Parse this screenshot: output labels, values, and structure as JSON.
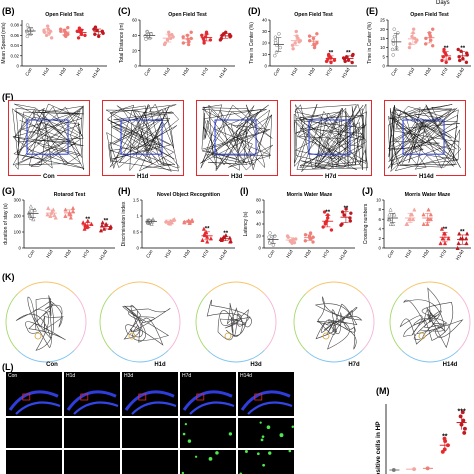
{
  "top_partial_text": "Days",
  "panel_letters": [
    "(B)",
    "(C)",
    "(D)",
    "(E)",
    "(F)",
    "(G)",
    "(H)",
    "(I)",
    "(J)",
    "(K)",
    "(L)",
    "(M)"
  ],
  "group_names": [
    "Con",
    "H1d",
    "H3d",
    "H7d",
    "H14d"
  ],
  "colors": {
    "control": "#777777",
    "light": "#f4a7a2",
    "mid": "#ef7f78",
    "dark": "#e4292f",
    "darkest": "#c0181f",
    "trace_blue": "#2a3ed9"
  },
  "chart_data": [
    {
      "id": "B",
      "type": "scatter",
      "title": "Open Field Test",
      "ylabel": "Mean Speed (m/s)",
      "categories": [
        "Con",
        "H1d",
        "H3d",
        "H7d",
        "H14d"
      ],
      "ylim": [
        0,
        0.09
      ],
      "ticks": [
        0,
        0.02,
        0.04,
        0.06,
        0.08
      ],
      "series": [
        {
          "values": [
            [
              0.065,
              0.07,
              0.062,
              0.075,
              0.08,
              0.058,
              0.07,
              0.068
            ],
            [
              0.06,
              0.072,
              0.066,
              0.055,
              0.078,
              0.07,
              0.064,
              0.068
            ],
            [
              0.058,
              0.07,
              0.075,
              0.066,
              0.062,
              0.072,
              0.068,
              0.06
            ],
            [
              0.06,
              0.066,
              0.07,
              0.074,
              0.055,
              0.068,
              0.062,
              0.07
            ],
            [
              0.062,
              0.07,
              0.076,
              0.066,
              0.058,
              0.072,
              0.068,
              0.064
            ]
          ]
        }
      ],
      "annotations": []
    },
    {
      "id": "C",
      "type": "scatter",
      "title": "Open Field Test",
      "ylabel": "Total Distance (m)",
      "categories": [
        "Con",
        "H1d",
        "H3d",
        "H7d",
        "H14d"
      ],
      "ylim": [
        0,
        60
      ],
      "ticks": [
        0,
        20,
        40,
        60
      ],
      "series": [
        {
          "values": [
            [
              38,
              42,
              36,
              45,
              40,
              35,
              44,
              39
            ],
            [
              34,
              40,
              30,
              38,
              44,
              28,
              36,
              41
            ],
            [
              32,
              40,
              36,
              28,
              44,
              38,
              30,
              35
            ],
            [
              34,
              38,
              42,
              30,
              36,
              40,
              44,
              33
            ],
            [
              36,
              42,
              40,
              38,
              44,
              34,
              41,
              39
            ]
          ]
        }
      ],
      "annotations": []
    },
    {
      "id": "D",
      "type": "scatter",
      "title": "Open Field Test",
      "ylabel": "Time in Center (%)",
      "categories": [
        "Con",
        "H1d",
        "H3d",
        "H7d",
        "H14d"
      ],
      "ylim": [
        0,
        40
      ],
      "ticks": [
        0,
        10,
        20,
        30,
        40
      ],
      "series": [
        {
          "values": [
            [
              22,
              16,
              28,
              12,
              20,
              25,
              18,
              9
            ],
            [
              20,
              26,
              15,
              22,
              30,
              18,
              24,
              21
            ],
            [
              18,
              24,
              28,
              16,
              20,
              26,
              22,
              19
            ],
            [
              5,
              8,
              3,
              10,
              6,
              4,
              7,
              9
            ],
            [
              6,
              8,
              4,
              9,
              5,
              7,
              3,
              10
            ]
          ]
        }
      ],
      "annotations": [
        "",
        "",
        "",
        "**",
        "**"
      ]
    },
    {
      "id": "E",
      "type": "scatter",
      "title": "Open Field Test",
      "ylabel": "Time in Center (%)",
      "categories": [
        "Con",
        "H1d",
        "H3d",
        "H7d",
        "H14d"
      ],
      "ylim": [
        0,
        25
      ],
      "ticks": [
        0,
        5,
        10,
        15,
        20,
        25
      ],
      "series": [
        {
          "values": [
            [
              14,
              18,
              10,
              20,
              12,
              6,
              16,
              9
            ],
            [
              16,
              20,
              12,
              14,
              18,
              10,
              15,
              13
            ],
            [
              14,
              18,
              11,
              16,
              20,
              12,
              15,
              17
            ],
            [
              4,
              7,
              2,
              9,
              5,
              3,
              6,
              8
            ],
            [
              5,
              8,
              3,
              7,
              4,
              9,
              2,
              6
            ]
          ]
        }
      ],
      "annotations": [
        "",
        "",
        "",
        "**",
        "**"
      ]
    },
    {
      "id": "G",
      "type": "scatter",
      "title": "Rotarod Test",
      "ylabel": "duration of stay (s)",
      "categories": [
        "Con",
        "H1d",
        "H3d",
        "H7d",
        "H14d"
      ],
      "ylim": [
        0,
        300
      ],
      "ticks": [
        0,
        100,
        200,
        300
      ],
      "series": [
        {
          "values": [
            [
              210,
              240,
              180,
              260,
              200,
              230,
              190,
              220
            ],
            [
              200,
              230,
              250,
              190,
              220,
              210,
              240,
              205
            ],
            [
              190,
              220,
              250,
              210,
              230,
              200,
              240,
              215
            ],
            [
              150,
              130,
              170,
              140,
              120,
              160,
              135,
              145
            ],
            [
              140,
              120,
              160,
              130,
              150,
              110,
              125,
              135
            ]
          ]
        }
      ],
      "annotations": [
        "",
        "",
        "",
        "**",
        "**"
      ]
    },
    {
      "id": "H",
      "type": "scatter",
      "title": "Novel Object Recognition",
      "ylabel": "Discrimination index",
      "categories": [
        "Con",
        "H1d",
        "H3d",
        "H7d",
        "H14d"
      ],
      "ylim": [
        0,
        1.5
      ],
      "ticks": [
        0,
        0.5,
        1.0,
        1.5
      ],
      "series": [
        {
          "values": [
            [
              0.82,
              0.9,
              0.75,
              0.88,
              0.8,
              0.85,
              0.78,
              0.86
            ],
            [
              0.78,
              0.85,
              0.82,
              0.9,
              0.76,
              0.84,
              0.8,
              0.88
            ],
            [
              0.8,
              0.86,
              0.84,
              0.78,
              0.88,
              0.82,
              0.8,
              0.85
            ],
            [
              0.3,
              0.5,
              0.2,
              0.4,
              0.6,
              0.25,
              0.35,
              0.45
            ],
            [
              0.25,
              0.35,
              0.3,
              0.2,
              0.4,
              0.28,
              0.32,
              0.22
            ]
          ]
        }
      ],
      "annotations": [
        "",
        "",
        "",
        "**",
        "**"
      ]
    },
    {
      "id": "I",
      "type": "scatter",
      "title": "Morris Water Maze",
      "ylabel": "Latency (s)",
      "categories": [
        "Con",
        "H1d",
        "H3d",
        "H7d",
        "H14d"
      ],
      "ylim": [
        0,
        80
      ],
      "ticks": [
        0,
        20,
        40,
        60,
        80
      ],
      "series": [
        {
          "values": [
            [
              10,
              20,
              5,
              15,
              25,
              8,
              12,
              18
            ],
            [
              12,
              8,
              18,
              15,
              10,
              20,
              14,
              9
            ],
            [
              15,
              20,
              10,
              25,
              18,
              12,
              22,
              16
            ],
            [
              30,
              45,
              55,
              40,
              60,
              35,
              50,
              42
            ],
            [
              40,
              55,
              60,
              45,
              65,
              38,
              50,
              58
            ]
          ]
        }
      ],
      "annotations": [
        "",
        "",
        "",
        "**",
        "**"
      ]
    },
    {
      "id": "J",
      "type": "scatter",
      "title": "Morris Water Maze",
      "ylabel": "Crossing numbers",
      "categories": [
        "Con",
        "H1d",
        "H3d",
        "H7d",
        "H14d"
      ],
      "ylim": [
        0,
        10
      ],
      "ticks": [
        0,
        2,
        4,
        6,
        8,
        10
      ],
      "series": [
        {
          "values": [
            [
              6,
              7,
              5,
              8,
              6,
              7,
              5,
              6
            ],
            [
              6,
              7,
              5,
              8,
              6,
              5,
              7,
              6
            ],
            [
              6,
              5,
              7,
              8,
              6,
              7,
              5,
              6
            ],
            [
              2,
              3,
              1,
              2,
              4,
              1,
              3,
              2
            ],
            [
              1,
              2,
              3,
              1,
              2,
              0,
              2,
              3
            ]
          ]
        }
      ],
      "annotations": [
        "",
        "",
        "",
        "**",
        "**"
      ]
    },
    {
      "id": "M",
      "type": "scatter",
      "ylabel": "ositive cells in HP",
      "categories": [
        "Con",
        "H1d",
        "H3d",
        "H7d",
        "H14d"
      ],
      "ylim": [
        0,
        8
      ],
      "series": [
        {
          "values": [
            [
              0
            ],
            [
              0.1
            ],
            [
              0.2
            ],
            [
              3.0,
              2.5,
              3.5,
              2.2,
              3.8
            ],
            [
              5.5,
              6.5,
              4.5,
              5.0,
              6.0,
              7.0
            ]
          ]
        }
      ],
      "annotations": [
        "",
        "",
        "",
        "**",
        "***"
      ]
    }
  ],
  "panel_F": {
    "labels": [
      "Con",
      "H1d",
      "H3d",
      "H7d",
      "H14d"
    ]
  },
  "panel_K": {
    "labels": [
      "Con",
      "H1d",
      "H3d",
      "H7d",
      "H14d"
    ]
  },
  "panel_L": {
    "labels": [
      "Con",
      "H1d",
      "H3d",
      "H7d",
      "H14d"
    ]
  }
}
